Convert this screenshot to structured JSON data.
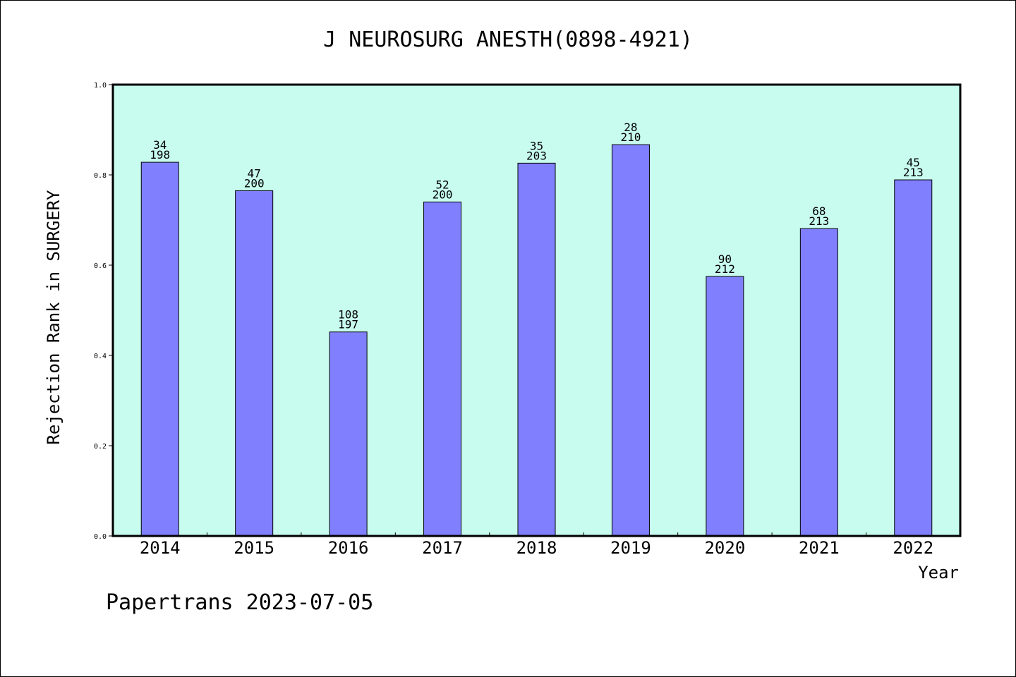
{
  "chart_data": {
    "type": "bar",
    "title": "J NEUROSURG ANESTH(0898-4921)",
    "xlabel": "Year",
    "ylabel": "Rejection Rank in SURGERY",
    "ylim": [
      0,
      1.0
    ],
    "yticks": [
      "0.0",
      "0.2",
      "0.4",
      "0.6",
      "0.8",
      "1.0"
    ],
    "categories": [
      "2014",
      "2015",
      "2016",
      "2017",
      "2018",
      "2019",
      "2020",
      "2021",
      "2022"
    ],
    "values": [
      0.828,
      0.765,
      0.452,
      0.74,
      0.826,
      0.867,
      0.575,
      0.681,
      0.789
    ],
    "rank_labels": [
      "34",
      "47",
      "108",
      "52",
      "35",
      "28",
      "90",
      "68",
      "45"
    ],
    "total_labels": [
      "198",
      "200",
      "197",
      "200",
      "203",
      "210",
      "212",
      "213",
      "213"
    ],
    "grid": false,
    "colors": {
      "plot_background": "#c8fcee",
      "bar_fill": "#8080ff",
      "bar_stroke": "#000000"
    }
  },
  "footer": "Papertrans 2023-07-05"
}
